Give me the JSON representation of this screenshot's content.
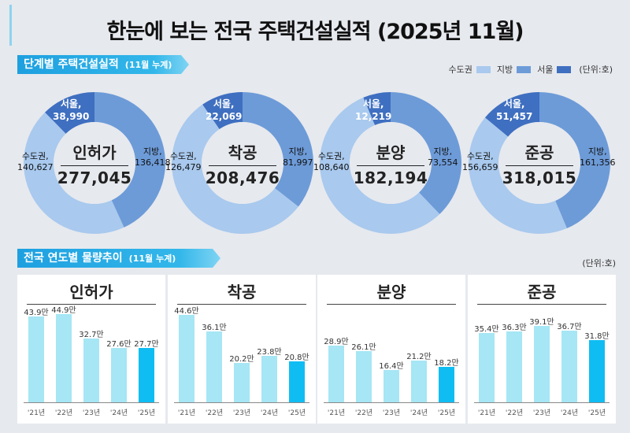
{
  "title": "한눈에 보는 전국 주택건설실적 (2025년 11월)",
  "section1": {
    "label": "단계별 주택건설실적",
    "sub": "(11월 누계)"
  },
  "section2": {
    "label": "전국 연도별 물량추이",
    "sub": "(11월 누계)"
  },
  "legend": {
    "items": [
      {
        "name": "수도권",
        "color": "#a9c9ee"
      },
      {
        "name": "지방",
        "color": "#6d9bd8"
      },
      {
        "name": "서울",
        "color": "#3f6fc0"
      }
    ],
    "unit": "(단위:호)"
  },
  "unit2": "(단위:호)",
  "colors": {
    "metro": "#a9c9ee",
    "local": "#6d9bd8",
    "seoul": "#3f6fc0",
    "bar": "#a6e6f5",
    "bar_last": "#10bdf3"
  },
  "chart_data": [
    {
      "type": "pie",
      "title": "인허가",
      "total": "277,045",
      "slices": [
        {
          "name": "서울,",
          "value": 38990,
          "label": "38,990"
        },
        {
          "name": "지방,",
          "value": 136418,
          "label": "136,418"
        },
        {
          "name": "수도권,",
          "value": 140627,
          "label": "140,627"
        }
      ]
    },
    {
      "type": "pie",
      "title": "착공",
      "total": "208,476",
      "slices": [
        {
          "name": "서울,",
          "value": 22069,
          "label": "22,069"
        },
        {
          "name": "지방,",
          "value": 81997,
          "label": "81,997"
        },
        {
          "name": "수도권,",
          "value": 126479,
          "label": "126,479"
        }
      ]
    },
    {
      "type": "pie",
      "title": "분양",
      "total": "182,194",
      "slices": [
        {
          "name": "서울,",
          "value": 12219,
          "label": "12,219"
        },
        {
          "name": "지방,",
          "value": 73554,
          "label": "73,554"
        },
        {
          "name": "수도권,",
          "value": 108640,
          "label": "108,640"
        }
      ]
    },
    {
      "type": "pie",
      "title": "준공",
      "total": "318,015",
      "slices": [
        {
          "name": "서울,",
          "value": 51457,
          "label": "51,457"
        },
        {
          "name": "지방,",
          "value": 161356,
          "label": "161,356"
        },
        {
          "name": "수도권,",
          "value": 156659,
          "label": "156,659"
        }
      ]
    },
    {
      "type": "bar",
      "title": "인허가",
      "categories": [
        "'21년",
        "'22년",
        "'23년",
        "'24년",
        "'25년"
      ],
      "values": [
        43.9,
        44.9,
        32.7,
        27.6,
        27.7
      ],
      "labels": [
        "43.9만",
        "44.9만",
        "32.7만",
        "27.6만",
        "27.7만"
      ]
    },
    {
      "type": "bar",
      "title": "착공",
      "categories": [
        "'21년",
        "'22년",
        "'23년",
        "'24년",
        "'25년"
      ],
      "values": [
        44.6,
        36.1,
        20.2,
        23.8,
        20.8
      ],
      "labels": [
        "44.6만",
        "36.1만",
        "20.2만",
        "23.8만",
        "20.8만"
      ]
    },
    {
      "type": "bar",
      "title": "분양",
      "categories": [
        "'21년",
        "'22년",
        "'23년",
        "'24년",
        "'25년"
      ],
      "values": [
        28.9,
        26.1,
        16.4,
        21.2,
        18.2
      ],
      "labels": [
        "28.9만",
        "26.1만",
        "16.4만",
        "21.2만",
        "18.2만"
      ]
    },
    {
      "type": "bar",
      "title": "준공",
      "categories": [
        "'21년",
        "'22년",
        "'23년",
        "'24년",
        "'25년"
      ],
      "values": [
        35.4,
        36.3,
        39.1,
        36.7,
        31.8
      ],
      "labels": [
        "35.4만",
        "36.3만",
        "39.1만",
        "36.7만",
        "31.8만"
      ]
    }
  ]
}
